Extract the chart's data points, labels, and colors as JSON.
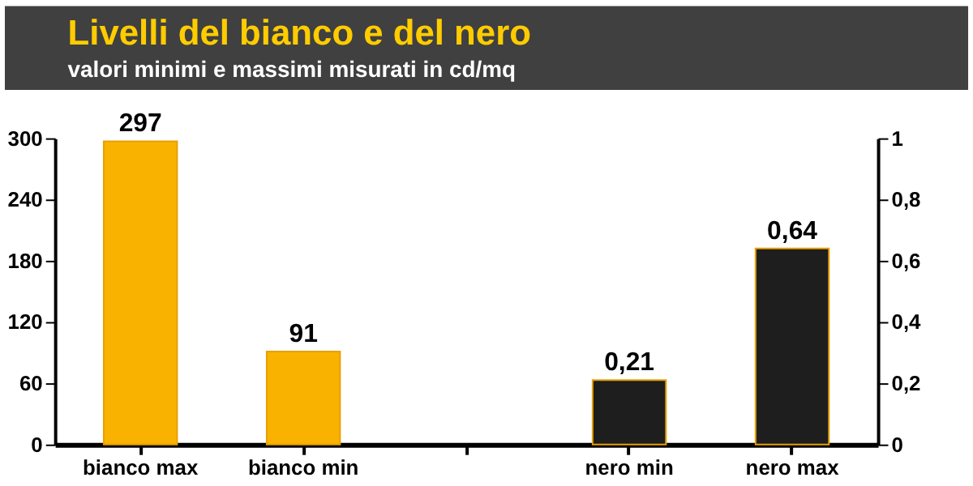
{
  "chart_data": {
    "type": "bar",
    "title": "Livelli del bianco e del nero",
    "subtitle": "valori minimi e massimi misurati in cd/mq",
    "categories": [
      "bianco max",
      "bianco min",
      null,
      "nero min",
      "nero max"
    ],
    "series": [
      {
        "color": "#f9b200",
        "values": [
          297,
          91,
          null,
          null,
          null
        ],
        "value_labels": [
          "297",
          "91",
          null,
          null,
          null
        ]
      },
      {
        "color": "#1e1e1e",
        "axis": "y2",
        "values": [
          null,
          null,
          null,
          0.21,
          0.64
        ],
        "value_labels": [
          null,
          null,
          null,
          "0,21",
          "0,64"
        ]
      }
    ],
    "ylim": [
      0,
      300
    ],
    "yticks": [
      0,
      60,
      120,
      180,
      240,
      300
    ],
    "y2lim": [
      0,
      1
    ],
    "y2ticks": [
      0,
      {
        "value": 0.2,
        "label": "0,2"
      },
      {
        "value": 0.4,
        "label": "0,4"
      },
      {
        "value": 0.6,
        "label": "0,6"
      },
      {
        "value": 0.8,
        "label": "0,8"
      },
      1
    ],
    "grid": false
  }
}
